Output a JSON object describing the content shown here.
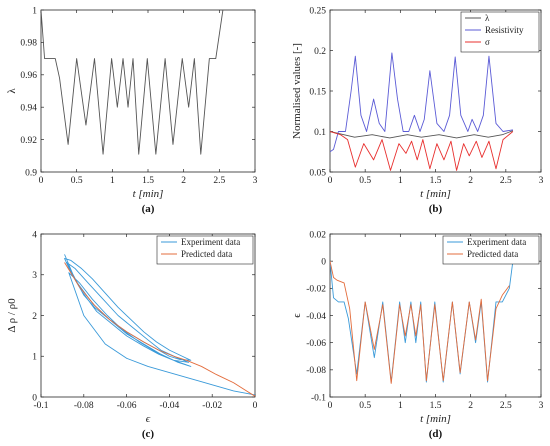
{
  "colors": {
    "axis": "#262626",
    "lambda": "#555555",
    "resistivity": "#5b5bd6",
    "sigma": "#e8302f",
    "experiment": "#3a9ad9",
    "predicted": "#e36c3c"
  },
  "chart_data": [
    {
      "panel": "(a)",
      "type": "line",
      "title": "",
      "xlabel": "t [min]",
      "ylabel": "λ",
      "xlim": [
        0,
        3
      ],
      "ylim": [
        0.9,
        1
      ],
      "xticks": [
        "0",
        "0.5",
        "1",
        "1.5",
        "2",
        "2.5",
        "3"
      ],
      "yticks": [
        "0.9",
        "0.92",
        "0.94",
        "0.96",
        "0.98",
        "1"
      ],
      "grid": false,
      "series": [
        {
          "name": "",
          "color_key": "lambda",
          "x": [
            0,
            0.05,
            0.12,
            0.2,
            0.26,
            0.38,
            0.5,
            0.63,
            0.75,
            0.87,
            0.99,
            1.07,
            1.15,
            1.22,
            1.29,
            1.37,
            1.49,
            1.61,
            1.74,
            1.85,
            1.98,
            2.07,
            2.15,
            2.24,
            2.36,
            2.45,
            2.55
          ],
          "y": [
            1.0,
            0.97,
            0.97,
            0.97,
            0.958,
            0.917,
            0.97,
            0.929,
            0.97,
            0.911,
            0.97,
            0.94,
            0.97,
            0.94,
            0.97,
            0.911,
            0.97,
            0.911,
            0.97,
            0.917,
            0.97,
            0.94,
            0.97,
            0.911,
            0.97,
            0.97,
            1.0
          ]
        }
      ]
    },
    {
      "panel": "(b)",
      "type": "line",
      "title": "",
      "xlabel": "t [min]",
      "ylabel": "Normalised values [-]",
      "xlim": [
        0,
        3
      ],
      "ylim": [
        0.05,
        0.25
      ],
      "xticks": [
        "0",
        "0.5",
        "1",
        "1.5",
        "2",
        "2.5",
        "3"
      ],
      "yticks": [
        "0.05",
        "0.1",
        "0.15",
        "0.2",
        "0.25"
      ],
      "legend": "top-right",
      "grid": false,
      "series": [
        {
          "name": "λ",
          "color_key": "lambda",
          "x": [
            0,
            0.15,
            0.35,
            0.6,
            0.85,
            1.1,
            1.3,
            1.55,
            1.8,
            2.05,
            2.25,
            2.45,
            2.6
          ],
          "y": [
            0.1,
            0.097,
            0.093,
            0.096,
            0.092,
            0.096,
            0.093,
            0.096,
            0.092,
            0.096,
            0.093,
            0.096,
            0.101
          ]
        },
        {
          "name": "Resistivity",
          "color_key": "resistivity",
          "x": [
            0,
            0.05,
            0.12,
            0.22,
            0.3,
            0.36,
            0.44,
            0.52,
            0.62,
            0.7,
            0.78,
            0.88,
            0.96,
            1.04,
            1.12,
            1.2,
            1.28,
            1.34,
            1.42,
            1.52,
            1.62,
            1.7,
            1.78,
            1.86,
            1.96,
            2.02,
            2.1,
            2.18,
            2.26,
            2.36,
            2.46,
            2.6
          ],
          "y": [
            0.075,
            0.078,
            0.1,
            0.1,
            0.15,
            0.193,
            0.12,
            0.1,
            0.14,
            0.11,
            0.1,
            0.197,
            0.14,
            0.1,
            0.1,
            0.12,
            0.1,
            0.115,
            0.175,
            0.11,
            0.1,
            0.12,
            0.192,
            0.12,
            0.1,
            0.115,
            0.1,
            0.12,
            0.193,
            0.11,
            0.1,
            0.102
          ]
        },
        {
          "name": "σ",
          "color_key": "sigma",
          "x": [
            0,
            0.15,
            0.25,
            0.36,
            0.48,
            0.62,
            0.74,
            0.86,
            0.98,
            1.08,
            1.16,
            1.24,
            1.32,
            1.42,
            1.52,
            1.62,
            1.72,
            1.8,
            1.9,
            1.98,
            2.08,
            2.16,
            2.26,
            2.36,
            2.46,
            2.6
          ],
          "y": [
            0.1,
            0.096,
            0.09,
            0.056,
            0.085,
            0.065,
            0.09,
            0.052,
            0.085,
            0.073,
            0.088,
            0.065,
            0.09,
            0.054,
            0.085,
            0.065,
            0.088,
            0.052,
            0.085,
            0.07,
            0.088,
            0.068,
            0.088,
            0.054,
            0.09,
            0.1
          ]
        }
      ]
    },
    {
      "panel": "(c)",
      "type": "line",
      "title": "",
      "xlabel": "ϵ",
      "ylabel": "Δ ρ / ρ0",
      "xlim": [
        -0.1,
        0
      ],
      "ylim": [
        0,
        4
      ],
      "xticks": [
        "-0.1",
        "-0.08",
        "-0.06",
        "-0.04",
        "-0.02",
        "0"
      ],
      "yticks": [
        "0",
        "1",
        "2",
        "3",
        "4"
      ],
      "legend": "top-right",
      "grid": false,
      "series": [
        {
          "name": "Experiment data",
          "color_key": "experiment",
          "x": [
            -0.089,
            -0.085,
            -0.08,
            -0.075,
            -0.068,
            -0.06,
            -0.052,
            -0.045,
            -0.04,
            -0.035,
            -0.03,
            -0.034,
            -0.04,
            -0.046,
            -0.052,
            -0.058,
            -0.064,
            -0.07,
            -0.076,
            -0.081,
            -0.086,
            -0.089,
            -0.086,
            -0.081,
            -0.074,
            -0.067,
            -0.06,
            -0.052,
            -0.045,
            -0.038,
            -0.031,
            -0.037,
            -0.044,
            -0.05,
            -0.057,
            -0.064,
            -0.071,
            -0.078,
            -0.084,
            -0.088,
            -0.083,
            -0.076,
            -0.068,
            -0.06,
            -0.052,
            -0.044,
            -0.036,
            -0.03,
            -0.038,
            -0.046,
            -0.054,
            -0.062,
            -0.069,
            -0.076,
            -0.082,
            -0.087,
            -0.08,
            -0.07,
            -0.06,
            -0.05,
            -0.04,
            -0.03,
            -0.02,
            -0.01,
            0.0
          ],
          "y": [
            3.5,
            3.0,
            2.5,
            2.2,
            1.9,
            1.6,
            1.35,
            1.15,
            1.0,
            0.92,
            0.9,
            1.0,
            1.15,
            1.35,
            1.6,
            1.9,
            2.2,
            2.55,
            2.9,
            3.15,
            3.35,
            3.4,
            3.05,
            2.6,
            2.1,
            1.8,
            1.5,
            1.25,
            1.05,
            0.9,
            0.85,
            0.98,
            1.15,
            1.4,
            1.7,
            2.0,
            2.4,
            2.8,
            3.15,
            3.3,
            2.8,
            2.3,
            1.9,
            1.55,
            1.3,
            1.05,
            0.85,
            0.75,
            0.9,
            1.1,
            1.35,
            1.65,
            2.0,
            2.4,
            2.8,
            3.05,
            2.0,
            1.3,
            0.95,
            0.75,
            0.6,
            0.45,
            0.3,
            0.15,
            0.05
          ]
        },
        {
          "name": "Predicted data",
          "color_key": "predicted",
          "x": [
            -0.089,
            -0.082,
            -0.075,
            -0.068,
            -0.06,
            -0.052,
            -0.045,
            -0.038,
            -0.032,
            -0.025,
            -0.018,
            -0.01,
            -0.004,
            0.0
          ],
          "y": [
            3.3,
            2.7,
            2.25,
            1.9,
            1.6,
            1.35,
            1.15,
            1.0,
            0.9,
            0.75,
            0.55,
            0.35,
            0.15,
            0.02
          ]
        }
      ]
    },
    {
      "panel": "(d)",
      "type": "line",
      "title": "",
      "xlabel": "t [min]",
      "ylabel": "ϵ",
      "xlim": [
        0,
        3
      ],
      "ylim": [
        -0.1,
        0.02
      ],
      "xticks": [
        "0",
        "0.5",
        "1",
        "1.5",
        "2",
        "2.5",
        "3"
      ],
      "yticks": [
        "-0.1",
        "-0.08",
        "-0.06",
        "-0.04",
        "-0.02",
        "0",
        "0.02"
      ],
      "legend": "top-right",
      "grid": false,
      "series": [
        {
          "name": "Experiment data",
          "color_key": "experiment",
          "x": [
            0,
            0.05,
            0.12,
            0.2,
            0.26,
            0.38,
            0.5,
            0.63,
            0.75,
            0.87,
            0.99,
            1.07,
            1.15,
            1.22,
            1.29,
            1.37,
            1.49,
            1.61,
            1.74,
            1.85,
            1.98,
            2.07,
            2.15,
            2.24,
            2.36,
            2.45,
            2.55,
            2.6
          ],
          "y": [
            0.0,
            -0.027,
            -0.03,
            -0.03,
            -0.042,
            -0.083,
            -0.03,
            -0.071,
            -0.03,
            -0.089,
            -0.03,
            -0.06,
            -0.03,
            -0.06,
            -0.03,
            -0.089,
            -0.03,
            -0.089,
            -0.03,
            -0.083,
            -0.03,
            -0.06,
            -0.03,
            -0.089,
            -0.03,
            -0.03,
            -0.02,
            0.0
          ]
        },
        {
          "name": "Predicted data",
          "color_key": "predicted",
          "x": [
            0,
            0.05,
            0.1,
            0.2,
            0.28,
            0.38,
            0.5,
            0.63,
            0.75,
            0.87,
            0.99,
            1.07,
            1.15,
            1.22,
            1.29,
            1.37,
            1.49,
            1.61,
            1.74,
            1.85,
            1.98,
            2.07,
            2.15,
            2.24,
            2.36,
            2.45,
            2.55
          ],
          "y": [
            0.0,
            -0.012,
            -0.014,
            -0.016,
            -0.035,
            -0.088,
            -0.03,
            -0.065,
            -0.032,
            -0.09,
            -0.032,
            -0.055,
            -0.032,
            -0.055,
            -0.032,
            -0.088,
            -0.032,
            -0.088,
            -0.03,
            -0.082,
            -0.03,
            -0.058,
            -0.028,
            -0.088,
            -0.035,
            -0.025,
            -0.018
          ]
        }
      ]
    }
  ]
}
